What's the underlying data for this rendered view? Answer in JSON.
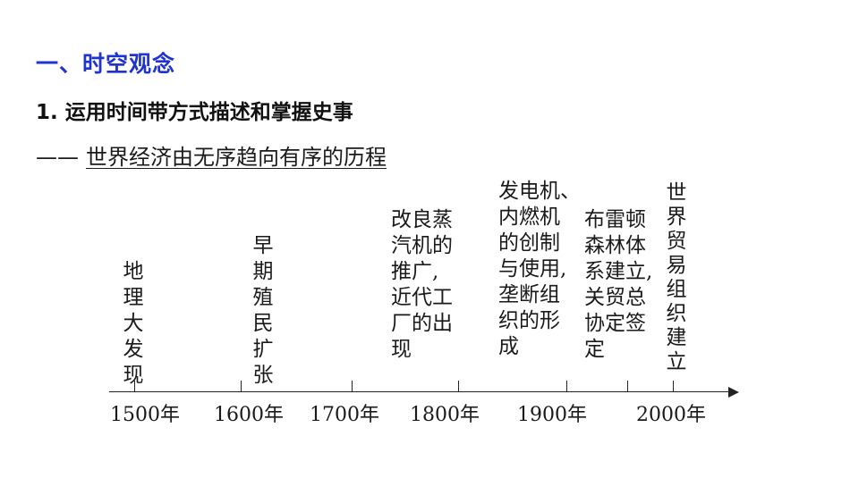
{
  "section_title": "一、时空观念",
  "heading": "1. 运用时间带方式描述和掌握史事",
  "subtitle_dash": "——",
  "subtitle": "世界经济由无序趋向有序的历程",
  "events": [
    {
      "lines": [
        "地",
        "理",
        "大",
        "发",
        "现"
      ]
    },
    {
      "lines": [
        "早",
        "期",
        "殖",
        "民",
        "扩",
        "张"
      ]
    },
    {
      "lines": [
        "改良蒸",
        "汽机的",
        "推广,",
        "近代工",
        "厂的出",
        "现"
      ]
    },
    {
      "lines": [
        "发电机、",
        "内燃机",
        "的创制",
        "与使用,",
        "垄断组",
        "织的形",
        "成"
      ]
    },
    {
      "lines": [
        "布雷顿",
        "森林体",
        "系建立,",
        "关贸总",
        "协定签",
        "定"
      ]
    },
    {
      "lines": [
        "世",
        "界",
        "贸",
        "易",
        "组",
        "织",
        "建",
        "立"
      ]
    }
  ],
  "timeline": {
    "years": [
      "1500年",
      "1600年",
      "1700年",
      "1800年",
      "1900年",
      "2000年"
    ]
  }
}
